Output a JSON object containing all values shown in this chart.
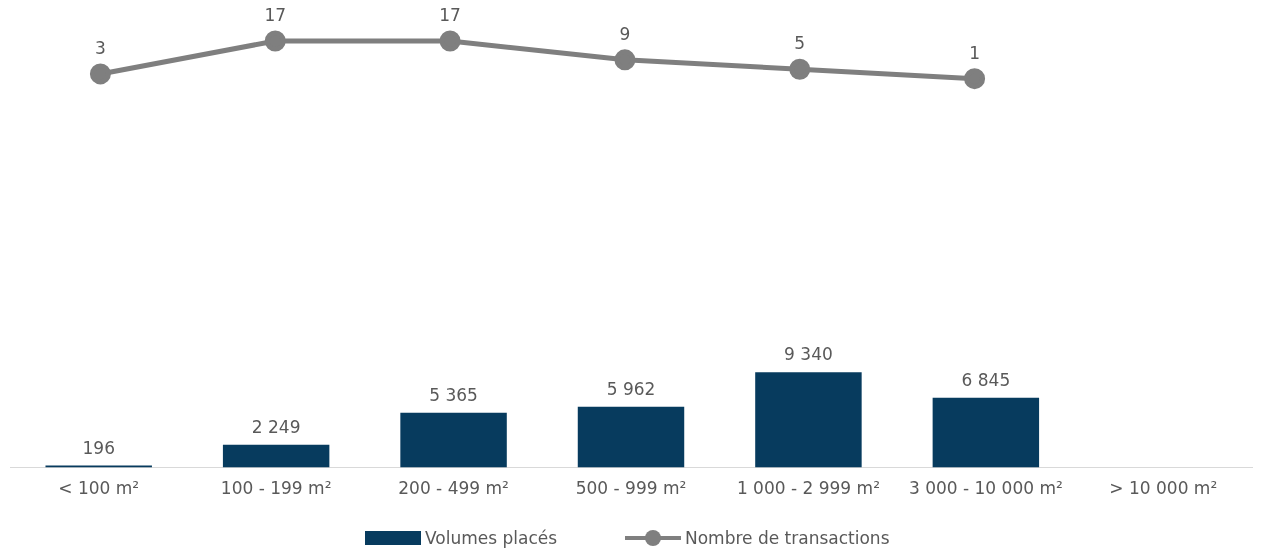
{
  "chart_data": [
    {
      "type": "line",
      "categories": [
        null,
        null,
        null,
        null,
        null,
        null
      ],
      "series": [
        {
          "name": "Nombre de transactions",
          "color": "#7f7f7f",
          "values": [
            3,
            17,
            17,
            9,
            5,
            1
          ],
          "value_labels": [
            "3",
            "17",
            "17",
            "9",
            "5",
            "1"
          ]
        }
      ],
      "tick_labels": false,
      "grid": false,
      "legend": "bottom",
      "marker": "circle",
      "line_style": "solid"
    },
    {
      "type": "bar",
      "categories": [
        "< 100 m²",
        "100 - 199 m²",
        "200 - 499 m²",
        "500 - 999 m²",
        "1 000 - 2 999 m²",
        "3 000 - 10 000 m²",
        "> 10 000 m²"
      ],
      "series": [
        {
          "name": "Volumes placés",
          "color": "#073b5e",
          "values": [
            196,
            2249,
            5365,
            5962,
            9340,
            6845,
            null
          ],
          "value_labels": [
            "196",
            "2 249",
            "5 365",
            "5 962",
            "9 340",
            "6 845",
            null
          ]
        }
      ],
      "tick_labels": "x",
      "grid": false,
      "legend": "bottom"
    }
  ]
}
